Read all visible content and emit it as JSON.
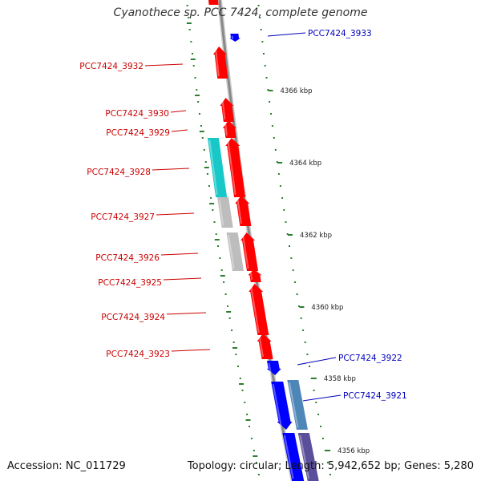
{
  "title": "Cyanothece sp. PCC 7424, complete genome",
  "footer": {
    "accession": "Accession: NC_011729",
    "summary": "Topology: circular; Length: 5,942,652 bp; Genes: 5,280"
  },
  "colors": {
    "reverse_strand": "#ff0000",
    "forward_strand": "#0000ff",
    "reverse_label": "#cc0000",
    "forward_label": "#0000bb",
    "cyan_feature": "#18c8c8",
    "gray_feature": "#bdbdbd",
    "steelblue_feature": "#4f86b8",
    "purple_feature": "#5a4f9a",
    "backbone": "#888888",
    "tick": "#2e7d2e"
  },
  "scale_labels": [
    "4366 kbp",
    "4364 kbp",
    "4362 kbp",
    "4360 kbp",
    "4358 kbp",
    "4356 kbp"
  ],
  "genes_reverse": [
    "PCC7424_3932",
    "PCC7424_3930",
    "PCC7424_3929",
    "PCC7424_3928",
    "PCC7424_3927",
    "PCC7424_3926",
    "PCC7424_3925",
    "PCC7424_3924",
    "PCC7424_3923"
  ],
  "genes_forward": [
    "PCC7424_3933",
    "PCC7424_3922",
    "PCC7424_3921"
  ]
}
